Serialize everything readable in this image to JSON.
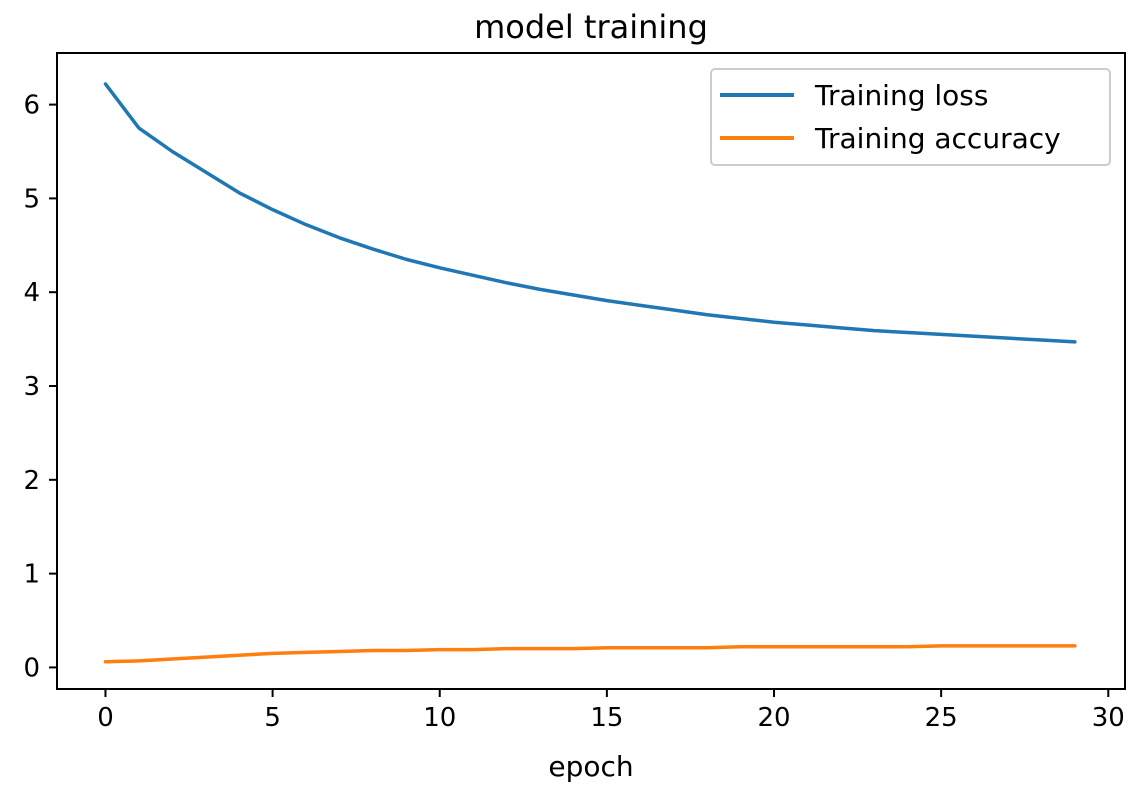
{
  "chart_data": {
    "type": "line",
    "title": "model training",
    "xlabel": "epoch",
    "ylabel": "",
    "xlim": [
      -1.45,
      30.5
    ],
    "ylim": [
      -0.23,
      6.55
    ],
    "x_ticks": [
      "0",
      "5",
      "10",
      "15",
      "20",
      "25",
      "30"
    ],
    "y_ticks": [
      "0",
      "1",
      "2",
      "3",
      "4",
      "5",
      "6"
    ],
    "grid": false,
    "legend_position": "top-right",
    "x": [
      0,
      1,
      2,
      3,
      4,
      5,
      6,
      7,
      8,
      9,
      10,
      11,
      12,
      13,
      14,
      15,
      16,
      17,
      18,
      19,
      20,
      21,
      22,
      23,
      24,
      25,
      26,
      27,
      28,
      29
    ],
    "series": [
      {
        "name": "Training loss",
        "color": "#1f77b4",
        "values": [
          6.22,
          5.75,
          5.5,
          5.28,
          5.06,
          4.88,
          4.72,
          4.58,
          4.46,
          4.35,
          4.26,
          4.18,
          4.1,
          4.03,
          3.97,
          3.91,
          3.86,
          3.81,
          3.76,
          3.72,
          3.68,
          3.65,
          3.62,
          3.59,
          3.57,
          3.55,
          3.53,
          3.51,
          3.49,
          3.47
        ]
      },
      {
        "name": "Training accuracy",
        "color": "#ff7f0e",
        "values": [
          0.06,
          0.07,
          0.09,
          0.11,
          0.13,
          0.15,
          0.16,
          0.17,
          0.18,
          0.18,
          0.19,
          0.19,
          0.2,
          0.2,
          0.2,
          0.21,
          0.21,
          0.21,
          0.21,
          0.22,
          0.22,
          0.22,
          0.22,
          0.22,
          0.22,
          0.23,
          0.23,
          0.23,
          0.23,
          0.23
        ]
      }
    ]
  }
}
